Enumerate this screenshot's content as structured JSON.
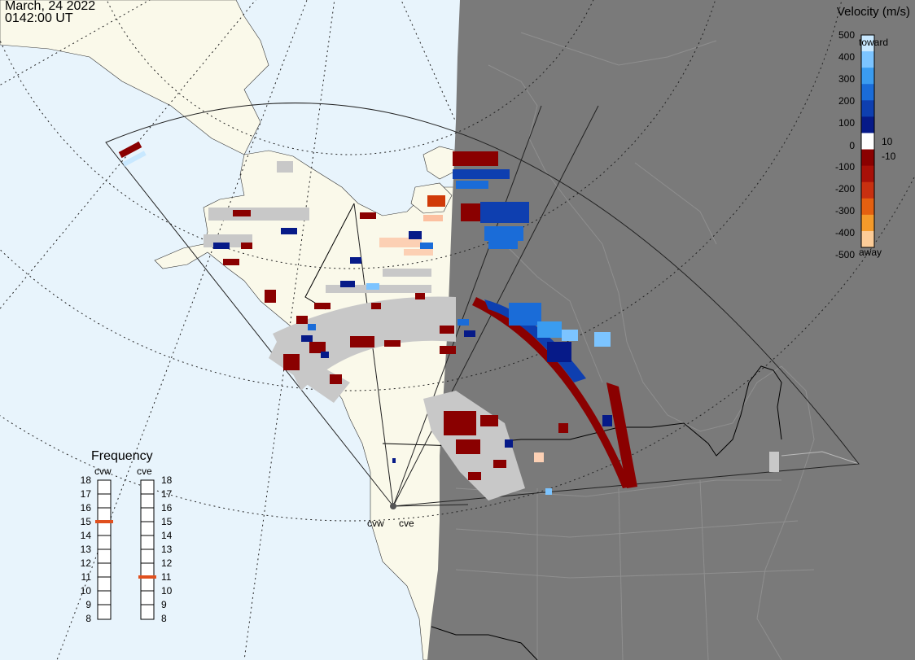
{
  "header": {
    "date": "March, 24 2022",
    "time": "0142:00 UT"
  },
  "colors": {
    "ocean": "#e8f4fc",
    "land_day": "#faf9ea",
    "night": "#7a7a7a",
    "night_land": "#808080",
    "ground_scatter": "#c8c8c8",
    "border": "#000000",
    "freq_marker": "#e0501e"
  },
  "velocity_scale": {
    "title": "Velocity (m/s)",
    "toward_label": "toward",
    "away_label": "away",
    "labels": [
      "500",
      "400",
      "300",
      "200",
      "100",
      "10",
      "0",
      "-10",
      "-100",
      "-200",
      "-300",
      "-400",
      "-500"
    ],
    "colors_top_to_bottom": [
      "#c8e8ff",
      "#7cc4ff",
      "#3a9cf0",
      "#1a6cd8",
      "#0e3fb0",
      "#061a88",
      "#ffffff",
      "#8a0000",
      "#a81008",
      "#c83010",
      "#e46010",
      "#f49a2a",
      "#fccc98"
    ]
  },
  "frequency": {
    "title": "Frequency",
    "radars": [
      {
        "name": "cvw",
        "value": 15
      },
      {
        "name": "cve",
        "value": 11
      }
    ],
    "ticks": [
      "18",
      "17",
      "16",
      "15",
      "14",
      "13",
      "12",
      "11",
      "10",
      "9",
      "8"
    ]
  },
  "radar_labels": [
    "cvw",
    "cve"
  ]
}
